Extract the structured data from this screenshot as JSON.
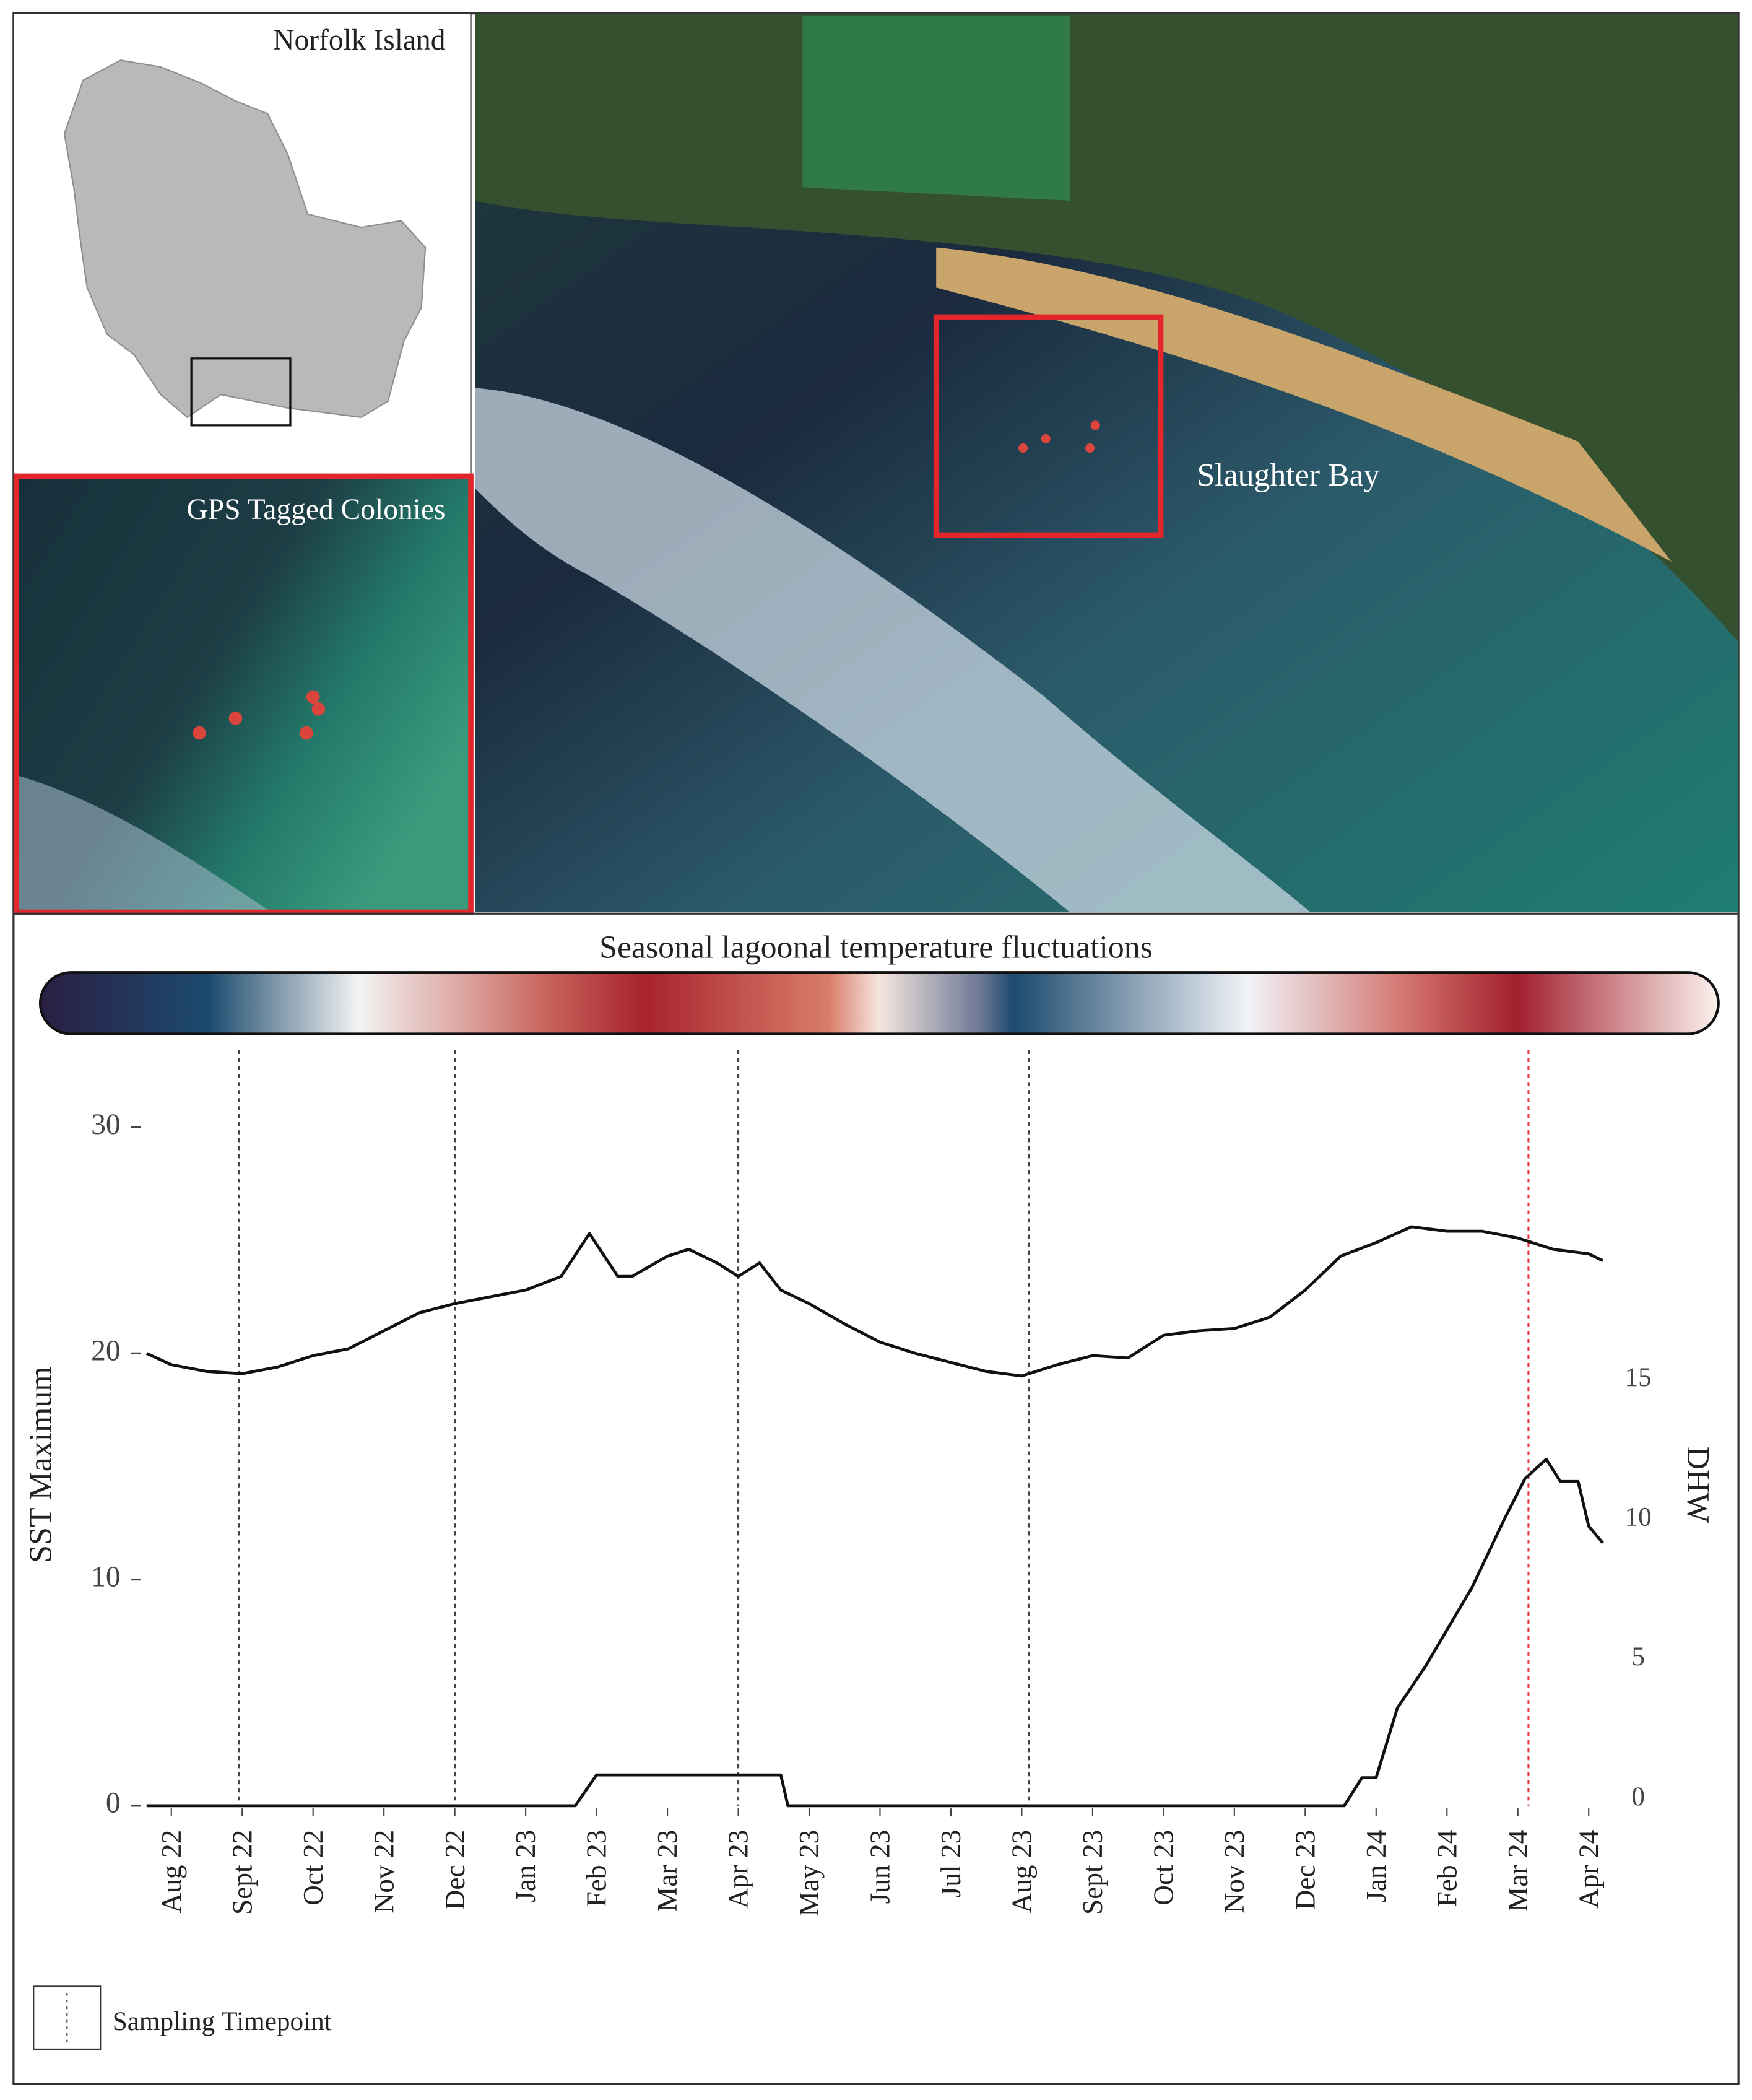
{
  "header": {
    "inset_title": "Norfolk Island",
    "zoom_title": "GPS Tagged Colonies",
    "bay_label": "Slaughter Bay",
    "colorbar_title": "Seasonal lagoonal temperature fluctuations"
  },
  "chart_data": {
    "type": "line",
    "ylabel": "SST Maximum",
    "y2label": "DHW",
    "xlim": [
      -0.4,
      20.4
    ],
    "xticks": [
      {
        "value": 0,
        "label": "Aug 22"
      },
      {
        "value": 1,
        "label": "Sept 22"
      },
      {
        "value": 2,
        "label": "Oct 22"
      },
      {
        "value": 3,
        "label": "Nov 22"
      },
      {
        "value": 4,
        "label": "Dec 22"
      },
      {
        "value": 5,
        "label": "Jan 23"
      },
      {
        "value": 6,
        "label": "Feb 23"
      },
      {
        "value": 7,
        "label": "Mar 23"
      },
      {
        "value": 8,
        "label": "Apr 23"
      },
      {
        "value": 9,
        "label": "May 23"
      },
      {
        "value": 10,
        "label": "Jun 23"
      },
      {
        "value": 11,
        "label": "Jul 23"
      },
      {
        "value": 12,
        "label": "Aug 23"
      },
      {
        "value": 13,
        "label": "Sept 23"
      },
      {
        "value": 14,
        "label": "Oct 23"
      },
      {
        "value": 15,
        "label": "Nov 23"
      },
      {
        "value": 16,
        "label": "Dec 23"
      },
      {
        "value": 17,
        "label": "Jan 24"
      },
      {
        "value": 18,
        "label": "Feb 24"
      },
      {
        "value": 19,
        "label": "Mar 24"
      },
      {
        "value": 20,
        "label": "Apr 24"
      }
    ],
    "ylim": [
      0,
      33
    ],
    "yticks": [
      0,
      10,
      20,
      30
    ],
    "y2lim": [
      0,
      26.7
    ],
    "y2ticks": [
      0,
      5,
      10,
      15
    ],
    "series": [
      {
        "name": "SST Maximum",
        "color": "#111111",
        "x": [
          -0.35,
          0,
          0.5,
          1,
          1.5,
          2,
          2.5,
          3,
          3.5,
          4,
          4.5,
          5,
          5.5,
          5.9,
          6.3,
          6.5,
          7,
          7.3,
          7.7,
          8,
          8.3,
          8.6,
          9,
          9.5,
          10,
          10.5,
          11,
          11.5,
          12,
          12.5,
          13,
          13.5,
          14,
          14.5,
          15,
          15.5,
          16,
          16.5,
          17,
          17.5,
          18,
          18.5,
          19,
          19.5,
          20,
          20.2
        ],
        "values": [
          20.0,
          19.5,
          19.2,
          19.1,
          19.4,
          19.9,
          20.2,
          21.0,
          21.8,
          22.2,
          22.5,
          22.8,
          23.4,
          25.3,
          23.4,
          23.4,
          24.3,
          24.6,
          24.0,
          23.4,
          24.0,
          22.8,
          22.2,
          21.3,
          20.5,
          20.0,
          19.6,
          19.2,
          19.0,
          19.5,
          19.9,
          19.8,
          20.8,
          21.0,
          21.1,
          21.6,
          22.8,
          24.3,
          24.9,
          25.6,
          25.4,
          25.4,
          25.1,
          24.6,
          24.4,
          24.1
        ]
      },
      {
        "name": "DHW",
        "color": "#111111",
        "axis": "y2",
        "x": [
          -0.35,
          5.7,
          6.0,
          8.6,
          8.7,
          16.55,
          16.8,
          17.0,
          17.3,
          17.7,
          18.35,
          18.8,
          19.1,
          19.4,
          19.6,
          19.85,
          20.0,
          20.2
        ],
        "values": [
          0,
          0,
          1.1,
          1.1,
          0,
          0,
          1.0,
          1.0,
          3.5,
          5.0,
          7.8,
          10.2,
          11.7,
          12.4,
          11.6,
          11.6,
          10.0,
          9.4
        ]
      }
    ],
    "sampling_timepoints": {
      "name": "Sampling Timepoint",
      "x": [
        0.95,
        4.0,
        8.0,
        12.1,
        19.15
      ],
      "colors": [
        "#444444",
        "#444444",
        "#444444",
        "#444444",
        "#e8343a"
      ]
    }
  }
}
